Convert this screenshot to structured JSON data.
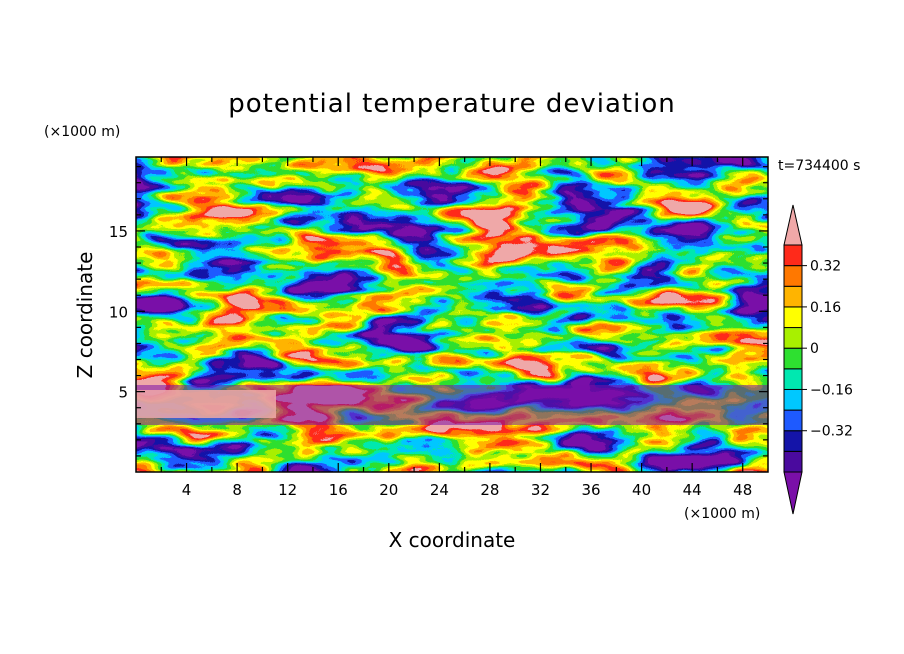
{
  "chart_data": {
    "type": "heatmap",
    "title": "potential temperature deviation",
    "time_label": "t=734400 s",
    "xlabel": "X coordinate",
    "ylabel": "Z coordinate",
    "x_unit": "(×1000 m)",
    "y_unit": "(×1000 m)",
    "xlim": [
      0,
      50
    ],
    "ylim": [
      0,
      19.6
    ],
    "x_ticks": [
      "4",
      "8",
      "12",
      "16",
      "20",
      "24",
      "28",
      "32",
      "36",
      "40",
      "44",
      "48"
    ],
    "y_ticks": [
      "5",
      "10",
      "15"
    ],
    "colorbar": {
      "levels": [
        -0.48,
        -0.4,
        -0.32,
        -0.24,
        -0.16,
        -0.08,
        0,
        0.08,
        0.16,
        0.24,
        0.32,
        0.4
      ],
      "labels": [
        "0.32",
        "0.16",
        "0",
        "−0.16",
        "−0.32"
      ],
      "label_values": [
        0.32,
        0.16,
        0,
        -0.16,
        -0.32
      ],
      "colors": [
        "#7a0fa8",
        "#4a0a9e",
        "#1414a8",
        "#1e5aff",
        "#00c8ff",
        "#00e8b0",
        "#2ee030",
        "#a8f000",
        "#ffff00",
        "#ffb400",
        "#ff7800",
        "#ff2a1a",
        "#f0a8a8"
      ],
      "extend": "both"
    }
  }
}
